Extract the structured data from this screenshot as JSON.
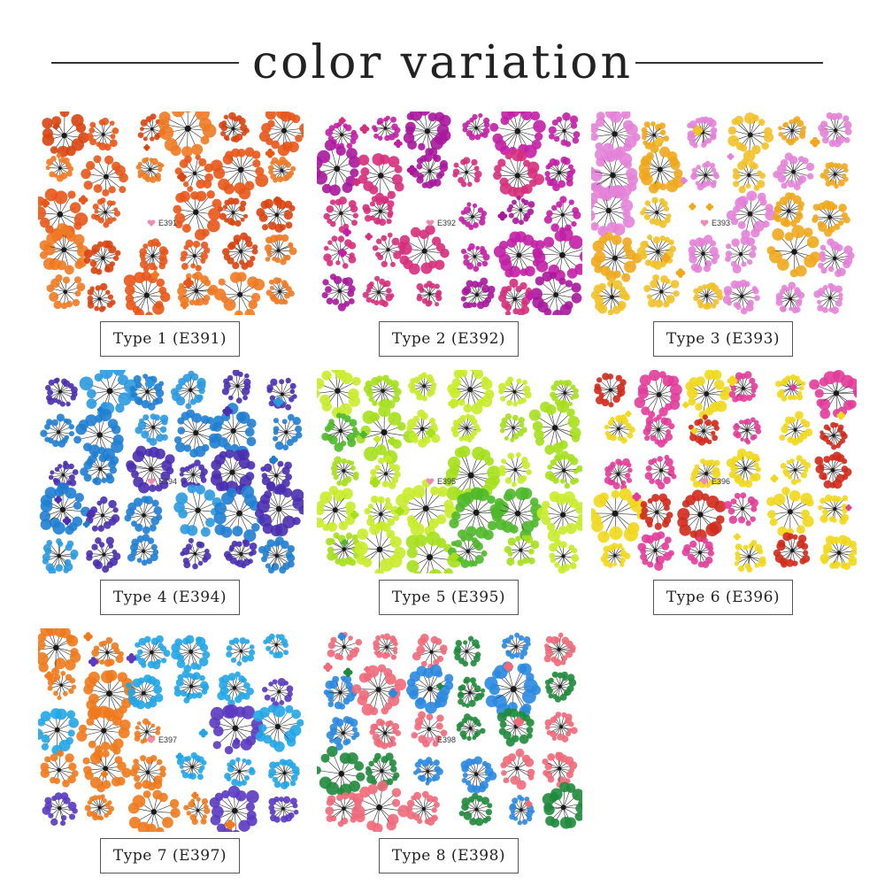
{
  "title": "color variation",
  "variants": [
    {
      "caption": "Type 1 (E391)",
      "code": "E391",
      "colors": [
        "#e8561a",
        "#f07a24",
        "#d94410"
      ]
    },
    {
      "caption": "Type 2 (E392)",
      "code": "E392",
      "colors": [
        "#c21fa6",
        "#d62f7c",
        "#a8179c"
      ]
    },
    {
      "caption": "Type 3 (E393)",
      "code": "E393",
      "colors": [
        "#f0a81c",
        "#e482d8",
        "#f2c22a"
      ]
    },
    {
      "caption": "Type 4 (E394)",
      "code": "E394",
      "colors": [
        "#2b9ae0",
        "#4a2fb0",
        "#1f7ed0"
      ]
    },
    {
      "caption": "Type 5 (E395)",
      "code": "E395",
      "colors": [
        "#a6e01c",
        "#4fb82a",
        "#c8ec2a"
      ]
    },
    {
      "caption": "Type 6 (E396)",
      "code": "E396",
      "colors": [
        "#d02a1c",
        "#f2d81c",
        "#e23c9a"
      ]
    },
    {
      "caption": "Type 7 (E397)",
      "code": "E397",
      "colors": [
        "#22a6e6",
        "#f07a1c",
        "#5a3ac0"
      ]
    },
    {
      "caption": "Type 8 (E398)",
      "code": "E398",
      "colors": [
        "#1f8a3c",
        "#f06a7a",
        "#2a8ae0"
      ]
    }
  ]
}
